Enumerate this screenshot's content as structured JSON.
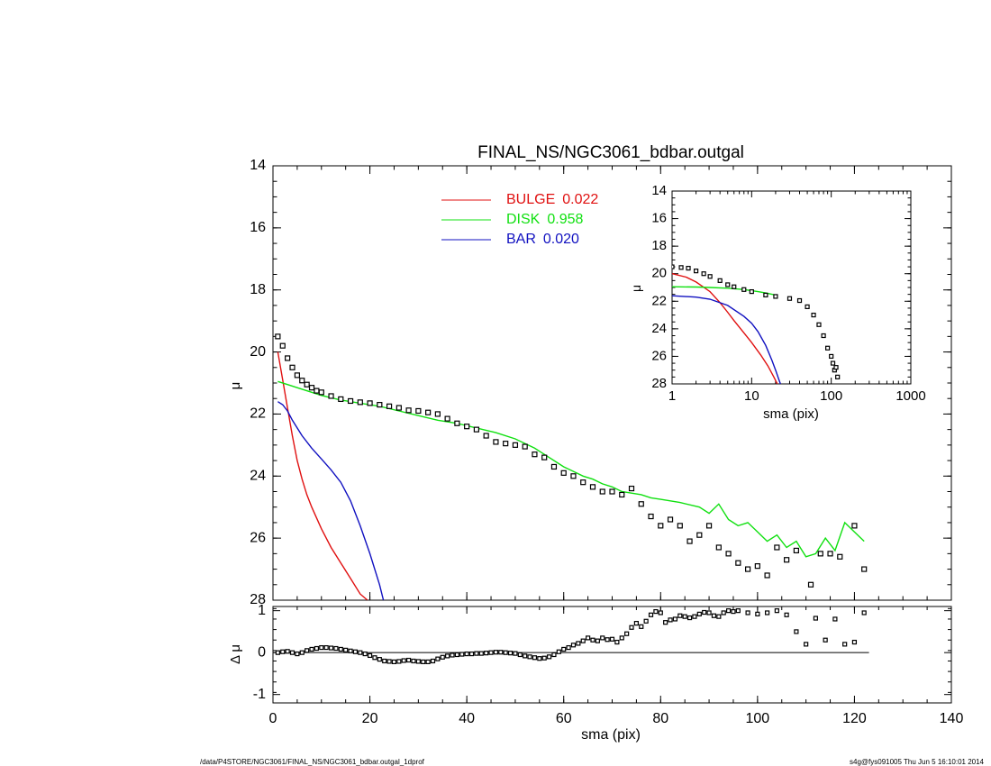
{
  "footer": {
    "left": "/data/P4STORE/NGC3061/FINAL_NS/NGC3061_bdbar.outgal_1dprof",
    "right": "s4g@fys091005  Thu Jun  5 16:10:01 2014"
  },
  "colors": {
    "bulge": "#e01010",
    "disk": "#10e010",
    "bar": "#1010c0",
    "data": "#000000"
  },
  "chart_data": [
    {
      "id": "main",
      "type": "line",
      "title": "FINAL_NS/NGC3061_bdbar.outgal",
      "xlabel": "",
      "ylabel": "μ",
      "xlim": [
        0,
        140
      ],
      "ylim": [
        28,
        14
      ],
      "y_inverted": true,
      "grid": false,
      "xticks": [
        0,
        20,
        40,
        60,
        80,
        100,
        120,
        140
      ],
      "yticks": [
        14,
        16,
        18,
        20,
        22,
        24,
        26,
        28
      ],
      "legend": [
        {
          "name": "BULGE",
          "value": "0.022",
          "color": "#e01010"
        },
        {
          "name": "DISK",
          "value": "0.958",
          "color": "#10e010"
        },
        {
          "name": "BAR",
          "value": "0.020",
          "color": "#1010c0"
        }
      ],
      "series": [
        {
          "name": "BULGE",
          "style": "line",
          "color": "#e01010",
          "x": [
            1.0,
            2.0,
            3.0,
            4.0,
            5.0,
            6.0,
            7.0,
            8.0,
            10.0,
            12.0,
            14.0,
            16.0,
            18.0,
            19.5
          ],
          "y": [
            20.0,
            20.9,
            21.8,
            22.7,
            23.5,
            24.1,
            24.6,
            25.0,
            25.7,
            26.3,
            26.8,
            27.3,
            27.8,
            28.0
          ]
        },
        {
          "name": "DISK",
          "style": "line",
          "color": "#10e010",
          "x": [
            1.0,
            3.0,
            5.0,
            8.0,
            10.0,
            14.0,
            18.0,
            22.0,
            26.0,
            30.0,
            34.0,
            38.0,
            42.0,
            46.0,
            50.0,
            54.0,
            56.0,
            58.0,
            60.0,
            62.0,
            64.0,
            66.0,
            68.0,
            70.0,
            72.0,
            74.0,
            76.0,
            78.0,
            80.0,
            84.0,
            88.0,
            90.0,
            92.0,
            94.0,
            96.0,
            98.0,
            100.0,
            102.0,
            104.0,
            106.0,
            108.0,
            110.0,
            112.0,
            114.0,
            116.0,
            118.0,
            120.0,
            122.0
          ],
          "y": [
            20.95,
            21.05,
            21.15,
            21.3,
            21.4,
            21.55,
            21.65,
            21.75,
            21.9,
            22.05,
            22.2,
            22.3,
            22.45,
            22.6,
            22.8,
            23.1,
            23.3,
            23.5,
            23.7,
            23.85,
            24.0,
            24.1,
            24.25,
            24.35,
            24.5,
            24.55,
            24.6,
            24.7,
            24.75,
            24.85,
            25.0,
            25.2,
            24.9,
            25.4,
            25.6,
            25.5,
            25.8,
            26.1,
            25.9,
            26.3,
            26.1,
            26.6,
            26.5,
            26.0,
            26.4,
            25.5,
            25.8,
            26.1
          ]
        },
        {
          "name": "BAR",
          "style": "line",
          "color": "#1010c0",
          "x": [
            1.0,
            2.0,
            3.0,
            4.0,
            6.0,
            8.0,
            10.0,
            12.0,
            14.0,
            16.0,
            18.0,
            20.0,
            22.0,
            22.8
          ],
          "y": [
            21.6,
            21.7,
            21.9,
            22.2,
            22.7,
            23.1,
            23.45,
            23.8,
            24.2,
            24.8,
            25.6,
            26.5,
            27.5,
            28.0
          ]
        },
        {
          "name": "",
          "style": "markers",
          "color": "#000000",
          "x": [
            1.0,
            2.0,
            3.0,
            4.0,
            5.0,
            6.0,
            7.0,
            8.0,
            9.0,
            10.0,
            12.0,
            14.0,
            16.0,
            18.0,
            20.0,
            22.0,
            24.0,
            26.0,
            28.0,
            30.0,
            32.0,
            34.0,
            36.0,
            38.0,
            40.0,
            42.0,
            44.0,
            46.0,
            48.0,
            50.0,
            52.0,
            54.0,
            56.0,
            58.0,
            60.0,
            62.0,
            64.0,
            66.0,
            68.0,
            70.0,
            72.0,
            74.0,
            76.0,
            78.0,
            80.0,
            82.0,
            84.0,
            86.0,
            88.0,
            90.0,
            92.0,
            94.0,
            96.0,
            98.0,
            100.0,
            102.0,
            104.0,
            106.0,
            108.0,
            111.0,
            113.0,
            115.0,
            117.0,
            120.0,
            122.0
          ],
          "y": [
            19.5,
            19.8,
            20.2,
            20.5,
            20.75,
            20.92,
            21.05,
            21.15,
            21.25,
            21.3,
            21.42,
            21.52,
            21.58,
            21.62,
            21.65,
            21.7,
            21.75,
            21.8,
            21.88,
            21.9,
            21.95,
            22.0,
            22.15,
            22.3,
            22.4,
            22.5,
            22.7,
            22.9,
            22.95,
            23.0,
            23.05,
            23.3,
            23.4,
            23.7,
            23.9,
            24.0,
            24.2,
            24.35,
            24.5,
            24.5,
            24.6,
            24.4,
            24.9,
            25.3,
            25.6,
            25.4,
            25.6,
            26.1,
            25.9,
            25.6,
            26.3,
            26.5,
            26.8,
            27.0,
            26.9,
            27.2,
            26.3,
            26.7,
            26.4,
            27.5,
            26.5,
            26.5,
            26.6,
            25.6,
            27.0
          ]
        }
      ]
    },
    {
      "id": "inset",
      "type": "line",
      "title": "",
      "xlabel": "sma (pix)",
      "ylabel": "μ",
      "x_scale": "log",
      "xlim": [
        1,
        1000
      ],
      "ylim": [
        28,
        14
      ],
      "y_inverted": true,
      "xticks": [
        1,
        10,
        100,
        1000
      ],
      "xtick_labels": [
        "1",
        "10",
        "100",
        "1000"
      ],
      "yticks": [
        14,
        16,
        18,
        20,
        22,
        24,
        26,
        28
      ],
      "series": [
        {
          "name": "BULGE",
          "style": "line",
          "color": "#e01010",
          "x": [
            1.0,
            1.5,
            2.0,
            3.0,
            4.0,
            5.0,
            6.0,
            8.0,
            10.0,
            13.0,
            16.0,
            19.0,
            21.0
          ],
          "y": [
            20.0,
            20.25,
            20.6,
            21.3,
            22.1,
            22.8,
            23.4,
            24.3,
            25.0,
            25.9,
            26.7,
            27.5,
            28.0
          ]
        },
        {
          "name": "DISK",
          "style": "line",
          "color": "#10e010",
          "x": [
            1.0,
            2.0,
            3.0,
            5.0,
            8.0,
            12.0,
            15.0,
            20.0
          ],
          "y": [
            20.95,
            20.97,
            21.0,
            21.05,
            21.15,
            21.3,
            21.4,
            21.55
          ]
        },
        {
          "name": "BAR",
          "style": "line",
          "color": "#1010c0",
          "x": [
            1.0,
            2.0,
            3.0,
            5.0,
            8.0,
            10.0,
            12.0,
            15.0,
            18.0,
            20.0,
            22.0,
            23.0
          ],
          "y": [
            21.6,
            21.7,
            21.85,
            22.3,
            23.1,
            23.6,
            24.2,
            25.2,
            26.3,
            27.0,
            27.7,
            28.0
          ]
        },
        {
          "name": "",
          "style": "markers",
          "color": "#000000",
          "x": [
            1.0,
            1.3,
            1.6,
            2.0,
            2.5,
            3.0,
            4.0,
            5.0,
            6.0,
            8.0,
            10.0,
            15.0,
            20.0,
            30.0,
            40.0,
            50.0,
            60.0,
            70.0,
            80.0,
            90.0,
            100.0,
            105.0,
            110.0,
            115.0,
            120.0
          ],
          "y": [
            19.5,
            19.55,
            19.6,
            19.8,
            20.0,
            20.2,
            20.5,
            20.8,
            20.95,
            21.15,
            21.3,
            21.55,
            21.65,
            21.8,
            21.95,
            22.4,
            23.0,
            23.7,
            24.5,
            25.4,
            26.0,
            26.5,
            27.0,
            26.8,
            27.5
          ]
        }
      ]
    },
    {
      "id": "residual",
      "type": "scatter",
      "title": "",
      "xlabel": "sma (pix)",
      "ylabel": "Δ μ",
      "xlim": [
        0,
        140
      ],
      "ylim": [
        -1.2,
        1.1
      ],
      "xticks": [
        0,
        20,
        40,
        60,
        80,
        100,
        120,
        140
      ],
      "yticks": [
        -1,
        0,
        1
      ],
      "zero_line": {
        "from": 0,
        "to": 123
      },
      "series": [
        {
          "name": "",
          "style": "markers",
          "color": "#000000",
          "x": [
            1.0,
            2.0,
            3.0,
            4.0,
            5.0,
            6.0,
            7.0,
            8.0,
            9.0,
            10.0,
            11.0,
            12.0,
            13.0,
            14.0,
            15.0,
            16.0,
            17.0,
            18.0,
            19.0,
            20.0,
            21.0,
            22.0,
            23.0,
            24.0,
            25.0,
            26.0,
            27.0,
            28.0,
            29.0,
            30.0,
            31.0,
            32.0,
            33.0,
            34.0,
            35.0,
            36.0,
            37.0,
            38.0,
            39.0,
            40.0,
            41.0,
            42.0,
            43.0,
            44.0,
            45.0,
            46.0,
            47.0,
            48.0,
            49.0,
            50.0,
            51.0,
            52.0,
            53.0,
            54.0,
            55.0,
            56.0,
            57.0,
            58.0,
            59.0,
            60.0,
            61.0,
            62.0,
            63.0,
            64.0,
            65.0,
            66.0,
            67.0,
            68.0,
            69.0,
            70.0,
            71.0,
            72.0,
            73.0,
            74.0,
            75.0,
            76.0,
            77.0,
            78.0,
            79.0,
            80.0,
            81.0,
            82.0,
            83.0,
            84.0,
            85.0,
            86.0,
            87.0,
            88.0,
            89.0,
            90.0,
            91.0,
            92.0,
            93.0,
            94.0,
            95.0,
            96.0,
            98.0,
            100.0,
            102.0,
            104.0,
            106.0,
            108.0,
            110.0,
            112.0,
            114.0,
            116.0,
            118.0,
            120.0,
            122.0
          ],
          "y": [
            0.0,
            0.02,
            0.03,
            0.0,
            -0.03,
            0.0,
            0.05,
            0.08,
            0.1,
            0.12,
            0.12,
            0.11,
            0.1,
            0.08,
            0.06,
            0.04,
            0.02,
            0.0,
            -0.03,
            -0.07,
            -0.12,
            -0.16,
            -0.2,
            -0.21,
            -0.22,
            -0.21,
            -0.19,
            -0.18,
            -0.2,
            -0.21,
            -0.22,
            -0.22,
            -0.2,
            -0.15,
            -0.11,
            -0.08,
            -0.06,
            -0.05,
            -0.04,
            -0.03,
            -0.03,
            -0.02,
            -0.02,
            -0.01,
            0.0,
            0.01,
            0.01,
            0.0,
            -0.01,
            -0.02,
            -0.05,
            -0.08,
            -0.1,
            -0.12,
            -0.14,
            -0.13,
            -0.1,
            -0.05,
            0.02,
            0.08,
            0.12,
            0.18,
            0.22,
            0.28,
            0.35,
            0.3,
            0.28,
            0.35,
            0.31,
            0.32,
            0.25,
            0.35,
            0.45,
            0.6,
            0.7,
            0.62,
            0.75,
            0.9,
            0.98,
            0.95,
            0.72,
            0.78,
            0.8,
            0.88,
            0.86,
            0.83,
            0.86,
            0.92,
            0.96,
            0.95,
            0.88,
            0.86,
            0.95,
            1.0,
            0.98,
            1.0,
            0.95,
            0.92,
            0.95,
            1.0,
            0.9,
            0.5,
            0.2,
            0.82,
            0.3,
            0.8,
            0.2,
            0.25,
            0.95
          ]
        }
      ]
    }
  ]
}
